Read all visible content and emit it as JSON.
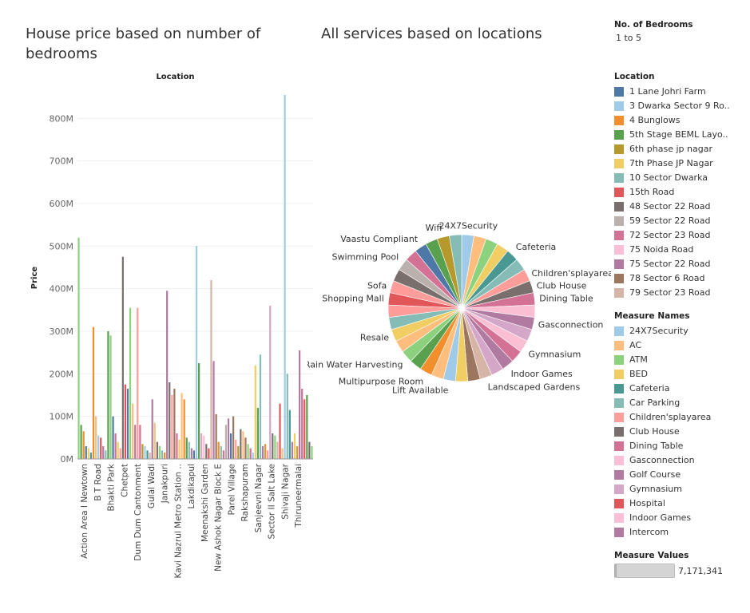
{
  "titles": {
    "bar": "House price based on number of bedrooms",
    "pie": "All services based on locations"
  },
  "filter": {
    "heading": "No. of Bedrooms",
    "value": "1 to 5"
  },
  "legends": {
    "location_heading": "Location",
    "locations": [
      {
        "label": "1 Lane Johri Farm",
        "color": "#4e79a7"
      },
      {
        "label": "3 Dwarka Sector 9 Ro..",
        "color": "#a0cbe8"
      },
      {
        "label": "4 Bunglows",
        "color": "#f28e2b"
      },
      {
        "label": "5th Stage BEML Layo..",
        "color": "#59a14f"
      },
      {
        "label": "6th phase jp nagar",
        "color": "#b6992d"
      },
      {
        "label": "7th Phase JP Nagar",
        "color": "#f1ce63"
      },
      {
        "label": "10 Sector Dwarka",
        "color": "#86bcb6"
      },
      {
        "label": "15th Road",
        "color": "#e15759"
      },
      {
        "label": "48 Sector 22 Road",
        "color": "#79706e"
      },
      {
        "label": "59 Sector 22 Road",
        "color": "#bab0ac"
      },
      {
        "label": "72 Sector 23 Road",
        "color": "#d37295"
      },
      {
        "label": "75 Noida Road",
        "color": "#fabfd2"
      },
      {
        "label": "75 Sector 22 Road",
        "color": "#b07aa1"
      },
      {
        "label": "78 Sector 6 Road",
        "color": "#9d7660"
      },
      {
        "label": "79 Sector 23 Road",
        "color": "#d7b5a6"
      }
    ],
    "measure_heading": "Measure Names",
    "measures": [
      {
        "label": "24X7Security",
        "color": "#a0cbe8"
      },
      {
        "label": "AC",
        "color": "#ffbe7d"
      },
      {
        "label": "ATM",
        "color": "#8cd17d"
      },
      {
        "label": "BED",
        "color": "#f1ce63"
      },
      {
        "label": "Cafeteria",
        "color": "#499894"
      },
      {
        "label": "Car Parking",
        "color": "#86bcb6"
      },
      {
        "label": "Children'splayarea",
        "color": "#ff9d9a"
      },
      {
        "label": "Club House",
        "color": "#79706e"
      },
      {
        "label": "Dining Table",
        "color": "#d37295"
      },
      {
        "label": "Gasconnection",
        "color": "#fabfd2"
      },
      {
        "label": "Golf Course",
        "color": "#b07aa1"
      },
      {
        "label": "Gymnasium",
        "color": "#d4a6c8"
      },
      {
        "label": "Hospital",
        "color": "#e15759"
      },
      {
        "label": "Indoor Games",
        "color": "#fabfd2"
      },
      {
        "label": "Intercom",
        "color": "#b07aa1"
      }
    ],
    "measure_values_heading": "Measure Values",
    "measure_values_value": "7,171,341"
  },
  "chart_data": [
    {
      "type": "bar",
      "title": "House price based on number of bedrooms",
      "top_label": "Location",
      "ylabel": "Price",
      "ylim": [
        0,
        870
      ],
      "yticks": [
        0,
        100,
        200,
        300,
        400,
        500,
        600,
        700,
        800
      ],
      "ytick_labels": [
        "0M",
        "100M",
        "200M",
        "300M",
        "400M",
        "500M",
        "600M",
        "700M",
        "800M"
      ],
      "grid": true,
      "series_colors": [
        "#4e79a7",
        "#a0cbe8",
        "#f28e2b",
        "#ffbe7d",
        "#59a14f",
        "#8cd17d",
        "#b6992d",
        "#f1ce63",
        "#499894",
        "#86bcb6",
        "#e15759",
        "#ff9d9a",
        "#79706e",
        "#bab0ac",
        "#d37295",
        "#fabfd2",
        "#b07aa1",
        "#d4a6c8",
        "#9d7660",
        "#d7b5a6"
      ],
      "categories": [
        "Action Area I Newtown",
        "B T Road",
        "Bhakti Park",
        "Chetpet",
        "Dum Dum Cantonment",
        "Gulal Wadi",
        "Janakpuri",
        "Kavi Nazrul Metro Station ..",
        "Lakdikapul",
        "Meenakshi Garden",
        "New Ashok Nagar Block E",
        "Parel Village",
        "Rakshapuram",
        "Sanjeevni Nagar",
        "Sector II Salt Lake",
        "Shivaji Nagar",
        "Thiruneermalai"
      ],
      "bars": [
        {
          "c": 5,
          "v": 520
        },
        {
          "c": 4,
          "v": 80
        },
        {
          "c": 2,
          "v": 65
        },
        {
          "c": 0,
          "v": 30
        },
        {
          "c": 7,
          "v": 25
        },
        {
          "c": 8,
          "v": 15
        },
        {
          "c": 2,
          "v": 310
        },
        {
          "c": 3,
          "v": 100
        },
        {
          "c": 1,
          "v": 55
        },
        {
          "c": 10,
          "v": 50
        },
        {
          "c": 16,
          "v": 30
        },
        {
          "c": 9,
          "v": 20
        },
        {
          "c": 4,
          "v": 300
        },
        {
          "c": 5,
          "v": 290
        },
        {
          "c": 0,
          "v": 100
        },
        {
          "c": 14,
          "v": 60
        },
        {
          "c": 7,
          "v": 40
        },
        {
          "c": 11,
          "v": 25
        },
        {
          "c": 12,
          "v": 475
        },
        {
          "c": 10,
          "v": 175
        },
        {
          "c": 0,
          "v": 165
        },
        {
          "c": 5,
          "v": 355
        },
        {
          "c": 3,
          "v": 130
        },
        {
          "c": 16,
          "v": 80
        },
        {
          "c": 11,
          "v": 355
        },
        {
          "c": 14,
          "v": 80
        },
        {
          "c": 6,
          "v": 35
        },
        {
          "c": 1,
          "v": 30
        },
        {
          "c": 8,
          "v": 20
        },
        {
          "c": 19,
          "v": 15
        },
        {
          "c": 16,
          "v": 140
        },
        {
          "c": 3,
          "v": 85
        },
        {
          "c": 12,
          "v": 40
        },
        {
          "c": 5,
          "v": 30
        },
        {
          "c": 9,
          "v": 20
        },
        {
          "c": 2,
          "v": 15
        },
        {
          "c": 16,
          "v": 395
        },
        {
          "c": 12,
          "v": 180
        },
        {
          "c": 11,
          "v": 150
        },
        {
          "c": 18,
          "v": 165
        },
        {
          "c": 14,
          "v": 60
        },
        {
          "c": 7,
          "v": 45
        },
        {
          "c": 3,
          "v": 155
        },
        {
          "c": 2,
          "v": 140
        },
        {
          "c": 4,
          "v": 50
        },
        {
          "c": 9,
          "v": 40
        },
        {
          "c": 16,
          "v": 25
        },
        {
          "c": 0,
          "v": 20
        },
        {
          "c": 1,
          "v": 500
        },
        {
          "c": 4,
          "v": 225
        },
        {
          "c": 17,
          "v": 60
        },
        {
          "c": 15,
          "v": 55
        },
        {
          "c": 12,
          "v": 35
        },
        {
          "c": 10,
          "v": 25
        },
        {
          "c": 19,
          "v": 420
        },
        {
          "c": 16,
          "v": 230
        },
        {
          "c": 18,
          "v": 105
        },
        {
          "c": 2,
          "v": 40
        },
        {
          "c": 9,
          "v": 30
        },
        {
          "c": 14,
          "v": 20
        },
        {
          "c": 13,
          "v": 80
        },
        {
          "c": 16,
          "v": 95
        },
        {
          "c": 0,
          "v": 60
        },
        {
          "c": 18,
          "v": 100
        },
        {
          "c": 11,
          "v": 45
        },
        {
          "c": 6,
          "v": 30
        },
        {
          "c": 12,
          "v": 70
        },
        {
          "c": 3,
          "v": 65
        },
        {
          "c": 18,
          "v": 50
        },
        {
          "c": 5,
          "v": 35
        },
        {
          "c": 14,
          "v": 25
        },
        {
          "c": 1,
          "v": 15
        },
        {
          "c": 7,
          "v": 220
        },
        {
          "c": 4,
          "v": 120
        },
        {
          "c": 9,
          "v": 245
        },
        {
          "c": 16,
          "v": 30
        },
        {
          "c": 2,
          "v": 35
        },
        {
          "c": 11,
          "v": 20
        },
        {
          "c": 17,
          "v": 360
        },
        {
          "c": 12,
          "v": 60
        },
        {
          "c": 5,
          "v": 55
        },
        {
          "c": 19,
          "v": 40
        },
        {
          "c": 10,
          "v": 130
        },
        {
          "c": 3,
          "v": 25
        },
        {
          "c": 1,
          "v": 855
        },
        {
          "c": 9,
          "v": 200
        },
        {
          "c": 8,
          "v": 115
        },
        {
          "c": 16,
          "v": 40
        },
        {
          "c": 7,
          "v": 60
        },
        {
          "c": 2,
          "v": 30
        },
        {
          "c": 16,
          "v": 255
        },
        {
          "c": 14,
          "v": 165
        },
        {
          "c": 10,
          "v": 140
        },
        {
          "c": 4,
          "v": 150
        },
        {
          "c": 12,
          "v": 40
        },
        {
          "c": 5,
          "v": 30
        }
      ]
    },
    {
      "type": "pie",
      "title": "All services based on locations",
      "slices": [
        {
          "label": "24X7Security",
          "color": "#a0cbe8",
          "value": 1
        },
        {
          "label": "",
          "color": "#ffbe7d",
          "value": 1
        },
        {
          "label": "",
          "color": "#8cd17d",
          "value": 1
        },
        {
          "label": "",
          "color": "#f1ce63",
          "value": 1
        },
        {
          "label": "Cafeteria",
          "color": "#499894",
          "value": 1
        },
        {
          "label": "",
          "color": "#86bcb6",
          "value": 1
        },
        {
          "label": "Children'splayarea",
          "color": "#ff9d9a",
          "value": 1
        },
        {
          "label": "Club House",
          "color": "#79706e",
          "value": 1
        },
        {
          "label": "Dining Table",
          "color": "#d37295",
          "value": 1
        },
        {
          "label": "",
          "color": "#fabfd2",
          "value": 1
        },
        {
          "label": "Gasconnection",
          "color": "#b07aa1",
          "value": 1
        },
        {
          "label": "",
          "color": "#d4a6c8",
          "value": 1
        },
        {
          "label": "Gymnasium",
          "color": "#fabfd2",
          "value": 1
        },
        {
          "label": "",
          "color": "#d37295",
          "value": 1
        },
        {
          "label": "Indoor Games",
          "color": "#b07aa1",
          "value": 1
        },
        {
          "label": "",
          "color": "#d4a6c8",
          "value": 1
        },
        {
          "label": "Landscaped Gardens",
          "color": "#d7b5a6",
          "value": 1
        },
        {
          "label": "",
          "color": "#9d7660",
          "value": 1
        },
        {
          "label": "",
          "color": "#f1ce63",
          "value": 1
        },
        {
          "label": "Lift Available",
          "color": "#a0cbe8",
          "value": 1
        },
        {
          "label": "",
          "color": "#ffbe7d",
          "value": 1
        },
        {
          "label": "Multipurpose Room",
          "color": "#f28e2b",
          "value": 1
        },
        {
          "label": "",
          "color": "#59a14f",
          "value": 1
        },
        {
          "label": "Rain Water Harvesting",
          "color": "#8cd17d",
          "value": 1
        },
        {
          "label": "",
          "color": "#ffbe7d",
          "value": 1
        },
        {
          "label": "Resale",
          "color": "#f1ce63",
          "value": 1
        },
        {
          "label": "",
          "color": "#86bcb6",
          "value": 1
        },
        {
          "label": "",
          "color": "#ff9d9a",
          "value": 1
        },
        {
          "label": "Shopping Mall",
          "color": "#e15759",
          "value": 1
        },
        {
          "label": "Sofa",
          "color": "#ff9d9a",
          "value": 1
        },
        {
          "label": "",
          "color": "#79706e",
          "value": 1
        },
        {
          "label": "Swimming Pool",
          "color": "#bab0ac",
          "value": 1
        },
        {
          "label": "",
          "color": "#d37295",
          "value": 1
        },
        {
          "label": "Vaastu Compliant",
          "color": "#4e79a7",
          "value": 1
        },
        {
          "label": "",
          "color": "#59a14f",
          "value": 1
        },
        {
          "label": "Wifi",
          "color": "#b6992d",
          "value": 1
        },
        {
          "label": "",
          "color": "#86bcb6",
          "value": 1
        }
      ]
    }
  ]
}
